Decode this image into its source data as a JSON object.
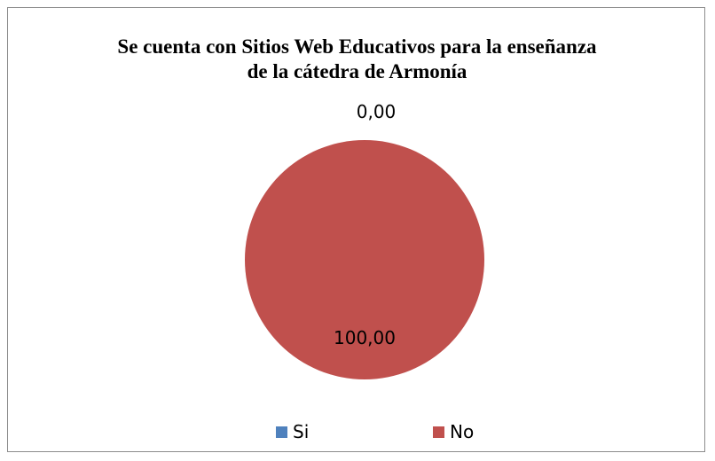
{
  "chart_data": {
    "type": "pie",
    "title_lines": [
      "Se cuenta con Sitios Web Educativos para la enseñanza",
      "de la cátedra de Armonía"
    ],
    "slices": [
      {
        "name": "Si",
        "value": 0.0,
        "label": "0,00",
        "color": "#4f81bd"
      },
      {
        "name": "No",
        "value": 100.0,
        "label": "100,00",
        "color": "#c0504d"
      }
    ],
    "legend_position": "bottom"
  }
}
